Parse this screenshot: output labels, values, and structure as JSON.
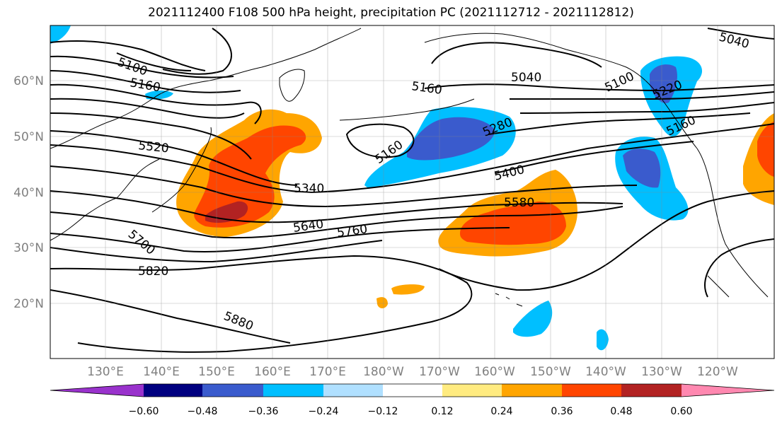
{
  "title": "2021112400 F108 500 hPa height, precipitation PC (2021112712 - 2021112812)",
  "lon_labels": [
    "130°E",
    "140°E",
    "150°E",
    "160°E",
    "170°E",
    "180°W",
    "170°W",
    "160°W",
    "150°W",
    "140°W",
    "130°W",
    "120°W"
  ],
  "lat_labels": [
    "60°N",
    "50°N",
    "40°N",
    "30°N",
    "20°N"
  ],
  "colorbar": {
    "colors": [
      "#9932CC",
      "#000080",
      "#3A5BCD",
      "#00BFFF",
      "#B0E0FF",
      "#FFFFFF",
      "#FFEB80",
      "#FFA500",
      "#FF4500",
      "#B22222",
      "#FF88B0"
    ],
    "labels": [
      "−0.60",
      "−0.48",
      "−0.36",
      "−0.24",
      "−0.12",
      "0.12",
      "0.24",
      "0.36",
      "0.48",
      "0.60"
    ]
  },
  "contour_labels": [
    "5100",
    "5160",
    "5520",
    "5340",
    "5640",
    "5760",
    "5820",
    "5880",
    "5040",
    "5160",
    "5160",
    "5280",
    "5400",
    "5580",
    "5100",
    "5220",
    "5160",
    "5040",
    "5700"
  ]
}
